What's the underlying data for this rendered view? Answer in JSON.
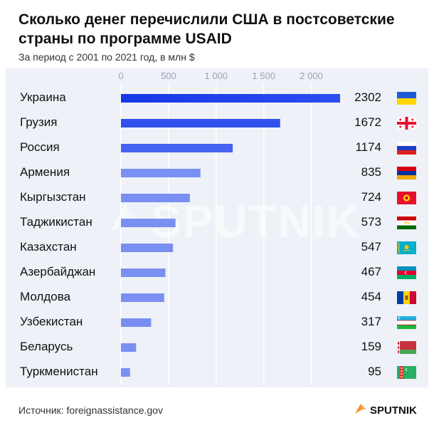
{
  "header": {
    "title": "Сколько денег перечислили США в постсоветские страны по программе USAID",
    "subtitle": "За период с 2001 по 2021 год, в млн $"
  },
  "footer": {
    "source": "Источник: foreignassistance.gov",
    "logo": "SPUTNIK"
  },
  "watermark": "SPUTNIK",
  "chart_data": {
    "type": "bar",
    "orientation": "horizontal",
    "title": "Сколько денег перечислили США в постсоветские страны по программе USAID",
    "subtitle": "За период с 2001 по 2021 год, в млн $",
    "xlim": [
      0,
      2302
    ],
    "tick_values": [
      0,
      500,
      1000,
      1500,
      2000
    ],
    "tick_labels": [
      "0",
      "500",
      "1 000",
      "1 500",
      "2 000"
    ],
    "grid": true,
    "categories": [
      "Украина",
      "Грузия",
      "Россия",
      "Армения",
      "Кыргызстан",
      "Таджикистан",
      "Казахстан",
      "Азербайджан",
      "Молдова",
      "Узбекистан",
      "Беларусь",
      "Туркменистан"
    ],
    "values": [
      2302,
      1672,
      1174,
      835,
      724,
      573,
      547,
      467,
      454,
      317,
      159,
      95
    ],
    "value_labels": [
      "2302",
      "1672",
      "1174",
      "835",
      "724",
      "573",
      "547",
      "467",
      "454",
      "317",
      "159",
      "95"
    ],
    "colors": {
      "top_bar_start": "#1537e6",
      "top_bar_end": "#2d4cf0",
      "bar_light": "#7a8ff2",
      "bar_mid": "#4d67f0",
      "grid": "#ffffff",
      "background": "#eef1f7"
    },
    "flags": [
      "flag-ukraine-icon",
      "flag-georgia-icon",
      "flag-russia-icon",
      "flag-armenia-icon",
      "flag-kyrgyzstan-icon",
      "flag-tajikistan-icon",
      "flag-kazakhstan-icon",
      "flag-azerbaijan-icon",
      "flag-moldova-icon",
      "flag-uzbekistan-icon",
      "flag-belarus-icon",
      "flag-turkmenistan-icon"
    ]
  }
}
